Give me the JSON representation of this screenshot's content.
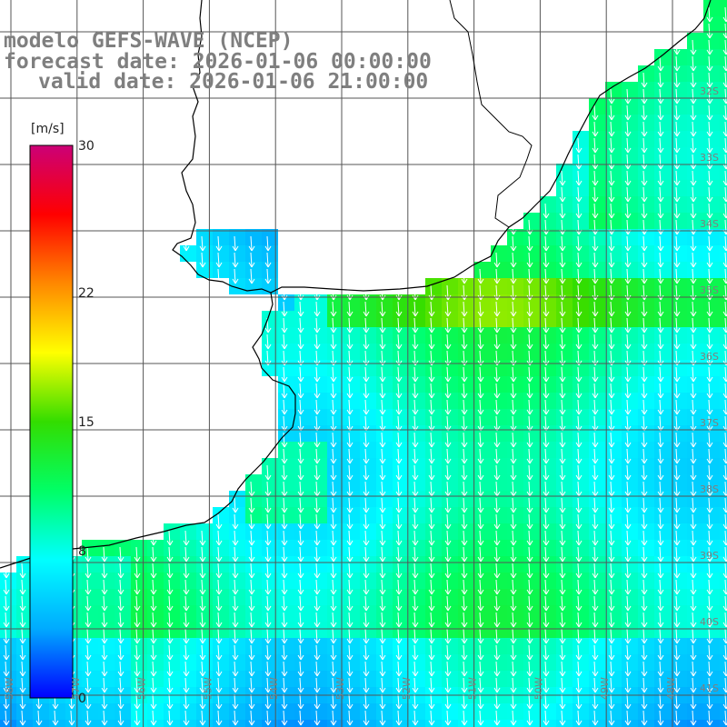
{
  "title": {
    "line1": "modelo GEFS-WAVE (NCEP)",
    "line2": "forecast date: 2026-01-06 00:00:00",
    "line3": "valid date: 2026-01-06 21:00:00"
  },
  "colorbar": {
    "unit": "[m/s]",
    "min": 0,
    "max": 30,
    "ticks": [
      "30",
      "22",
      "15",
      "8",
      "0"
    ],
    "tick_values": [
      30,
      22,
      15,
      8,
      0
    ],
    "stops": [
      "#0000ff",
      "#00aaff",
      "#00ffff",
      "#00ff66",
      "#33dd00",
      "#ffff00",
      "#ff8800",
      "#ff0000",
      "#cc0077"
    ]
  },
  "lat_labels": [
    "32S",
    "33S",
    "34S",
    "35S",
    "36S",
    "37S",
    "38S",
    "39S",
    "40S",
    "41S"
  ],
  "lon_labels": [
    "58W",
    "57W",
    "56W",
    "55W",
    "54W",
    "53W",
    "52W",
    "51W",
    "50W",
    "49W",
    "48W"
  ],
  "wind_direction": "south-southwest",
  "colors": {
    "land": "#ffffff",
    "coast": "#000000",
    "grid": "#555555",
    "arrows": "#ffffff",
    "title": "#7f7f7f"
  }
}
